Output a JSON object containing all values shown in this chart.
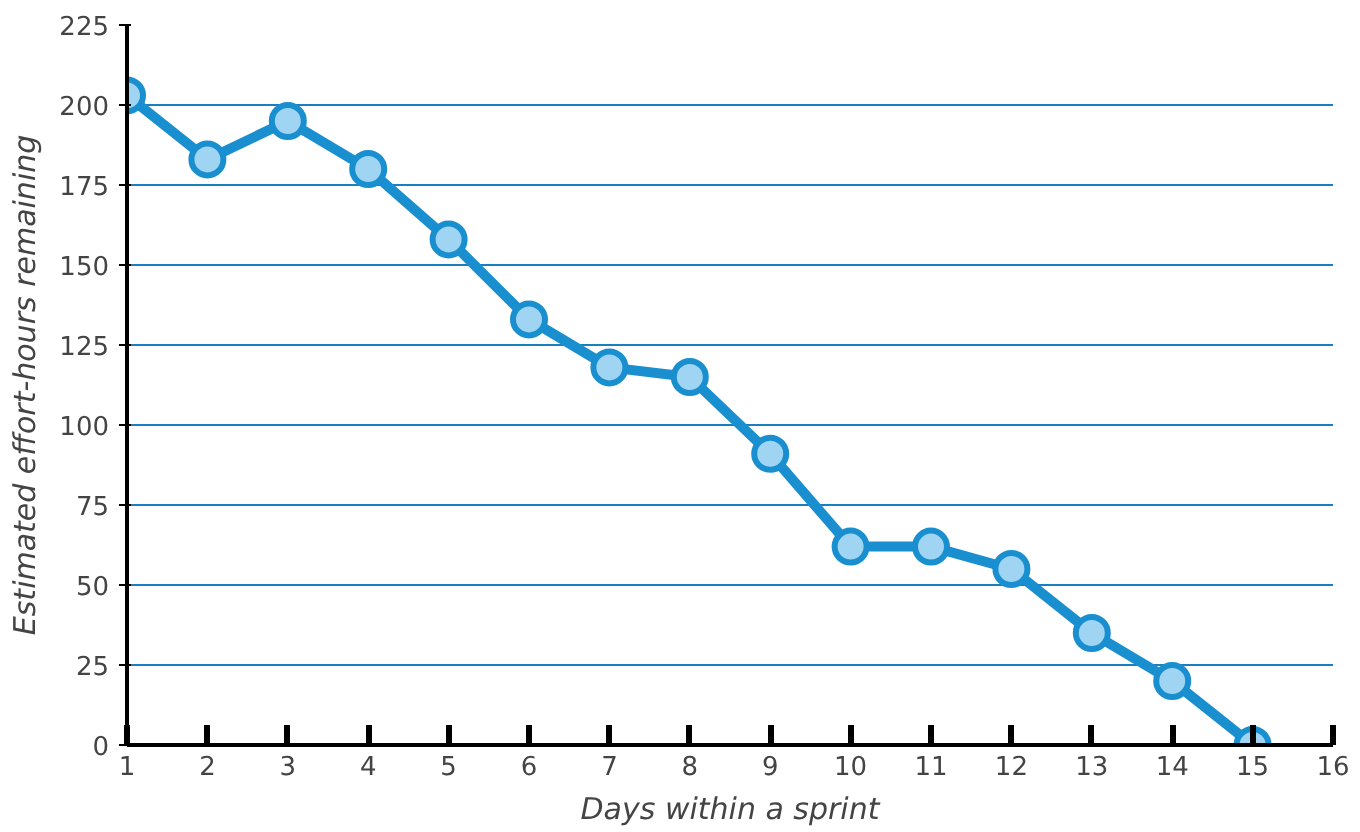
{
  "chart_data": {
    "type": "line",
    "xlabel": "Days within a sprint",
    "ylabel": "Estimated effort-hours remaining",
    "x": [
      1,
      2,
      3,
      4,
      5,
      6,
      7,
      8,
      9,
      10,
      11,
      12,
      13,
      14,
      15
    ],
    "values": [
      203,
      183,
      195,
      180,
      158,
      133,
      118,
      115,
      91,
      62,
      62,
      55,
      35,
      20,
      0
    ],
    "color": "#1a8fd0",
    "marker": "circle",
    "line_style": "solid",
    "grid": "y",
    "xlim": [
      1,
      16
    ],
    "xticks": [
      1,
      2,
      3,
      4,
      5,
      6,
      7,
      8,
      9,
      10,
      11,
      12,
      13,
      14,
      15,
      16
    ],
    "ylim": [
      0,
      225
    ],
    "yticks": [
      0,
      25,
      50,
      75,
      100,
      125,
      150,
      175,
      200,
      225
    ]
  }
}
